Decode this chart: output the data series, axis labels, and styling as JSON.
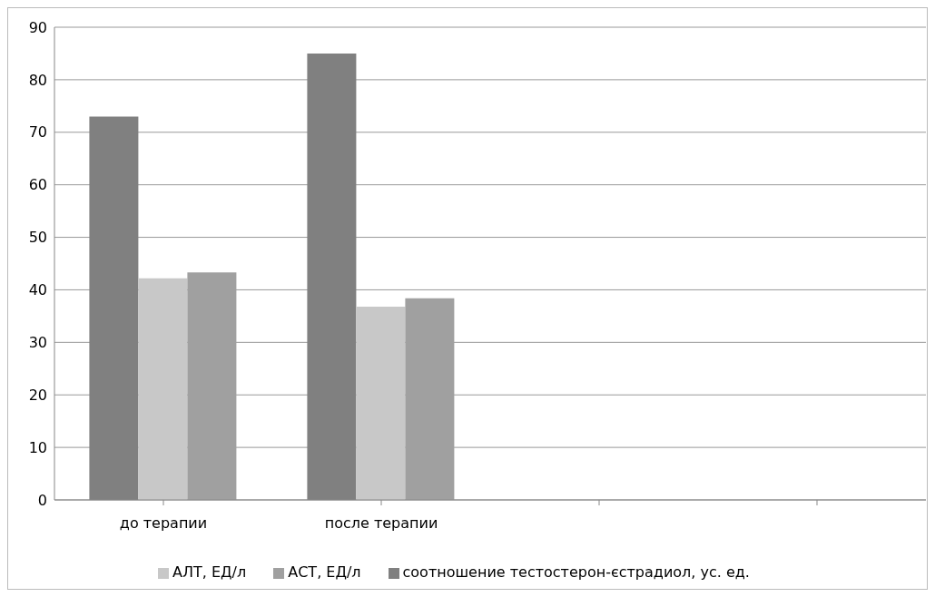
{
  "chart_data": {
    "type": "bar",
    "categories": [
      "до терапии",
      "после терапии",
      null,
      null
    ],
    "series": [
      {
        "name": "соотношение тестостерон-єстрадиол, ус. ед.",
        "color": "#808080",
        "values": [
          73,
          85,
          null,
          null
        ]
      },
      {
        "name": "АЛТ, ЕД/л",
        "color": "#c8c8c8",
        "values": [
          42.2,
          36.8,
          null,
          null
        ]
      },
      {
        "name": "АСТ, ЕД/л",
        "color": "#a0a0a0",
        "values": [
          43.3,
          38.4,
          null,
          null
        ]
      }
    ],
    "ylim": [
      0,
      90
    ],
    "yticks": [
      0,
      10,
      20,
      30,
      40,
      50,
      60,
      70,
      80,
      90
    ],
    "grid": "y",
    "legend": "bottom"
  }
}
